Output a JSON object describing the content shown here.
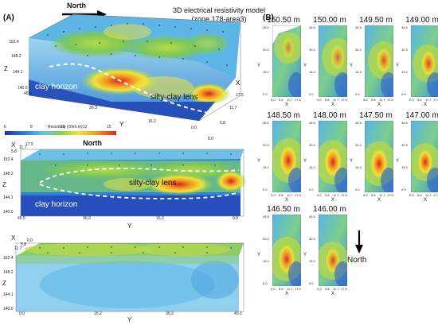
{
  "panel_a": {
    "label": "(A)",
    "north": "North",
    "title_line1": "3D electrical resistivity model",
    "title_line2": "(zone 178-area3)",
    "block1": {
      "z_axis": "Z",
      "z_ticks": [
        "152.4",
        "148.2",
        "144.1",
        "140.0"
      ],
      "x_axis": "X",
      "y_axis": "Y",
      "x_ticks": [
        "0.0",
        "5.8",
        "11.7",
        "17.5"
      ],
      "y_ticks": [
        "45.5",
        "30.3",
        "15.2",
        "0.0"
      ],
      "label_clay": "clay horizon",
      "label_lens": "silty-clay lens"
    },
    "colorbar": {
      "title": "Resistivity (Ohm.m)",
      "ticks": [
        "6",
        "8",
        "10",
        "12",
        "15"
      ],
      "axis": "Y"
    },
    "block2": {
      "north": "North",
      "x_axis": "X",
      "x_ticks": [
        "5.8",
        "11.7",
        "17.5"
      ],
      "z_axis": "Z",
      "z_ticks": [
        "152.4",
        "148.2",
        "144.1",
        "140.0"
      ],
      "y_axis": "Y",
      "y_ticks": [
        "45.5",
        "30.3",
        "15.2",
        "0.0"
      ],
      "label_clay": "clay horizon",
      "label_lens": "silty-clay lens"
    },
    "block3": {
      "x_axis": "X",
      "x_ticks": [
        "0.0",
        "5.8",
        "11.7"
      ],
      "z_axis": "Z",
      "z_ticks": [
        "152.4",
        "148.2",
        "144.1",
        "140.0"
      ],
      "y_axis": "Y",
      "y_ticks": [
        "0.0",
        "15.2",
        "30.3",
        "45.5"
      ]
    }
  },
  "panel_b": {
    "label": "(B)",
    "north": "North",
    "y_axis": "Y",
    "x_axis": "X",
    "y_ticks": [
      "45.5",
      "30.3",
      "15.2",
      "0.0"
    ],
    "x_ticks": [
      "0.0",
      "5.8",
      "11.7",
      "17.5"
    ],
    "slices": [
      {
        "depth": "150.50 m"
      },
      {
        "depth": "150.00 m"
      },
      {
        "depth": "149.50 m"
      },
      {
        "depth": "149.00 m"
      },
      {
        "depth": "148.50 m"
      },
      {
        "depth": "148.00 m"
      },
      {
        "depth": "147.50 m"
      },
      {
        "depth": "147.00 m"
      },
      {
        "depth": "146.50 m"
      },
      {
        "depth": "146.00 m"
      }
    ]
  },
  "colors": {
    "low": "#1f3fbf",
    "mid": "#7ec850",
    "high": "#e0301e"
  }
}
